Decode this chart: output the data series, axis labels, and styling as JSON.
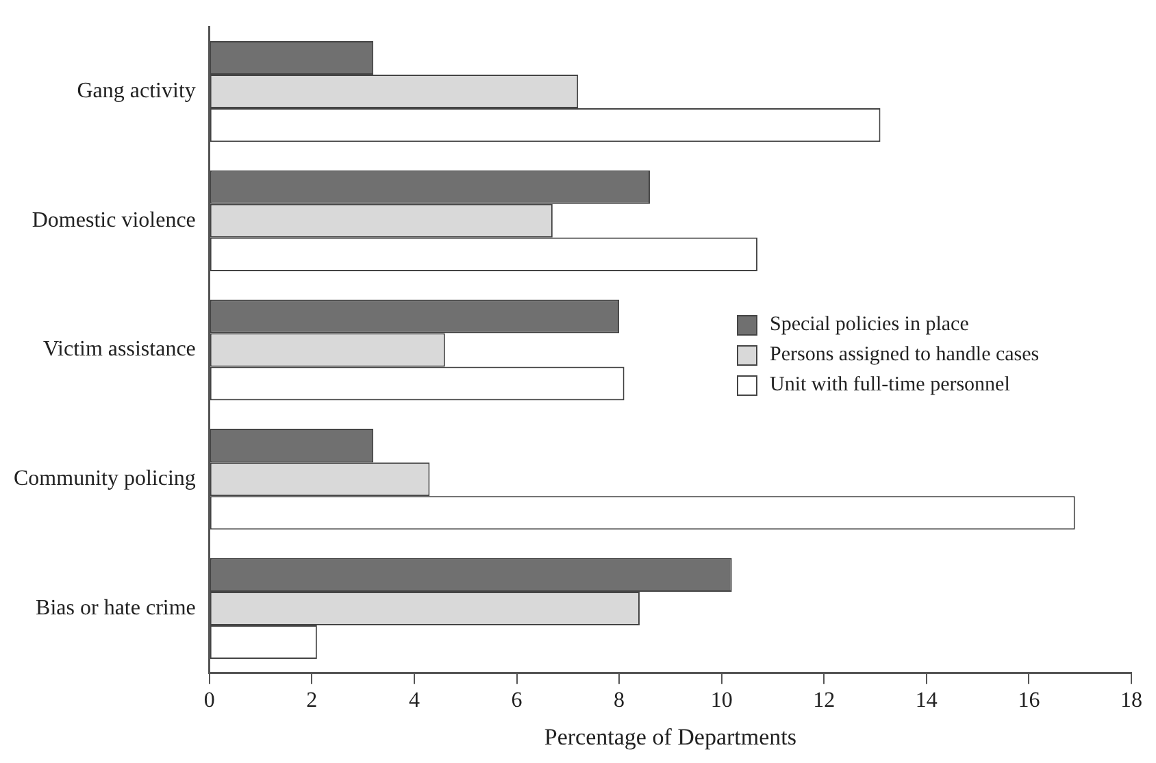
{
  "chart_data": {
    "type": "bar",
    "orientation": "horizontal",
    "xlabel": "Percentage of Departments",
    "categories": [
      "Gang activity",
      "Domestic violence",
      "Victim assistance",
      "Community policing",
      "Bias or hate crime"
    ],
    "series": [
      {
        "name": "Special policies in place",
        "color": "#707070",
        "values": [
          3.2,
          8.6,
          8.0,
          3.2,
          10.2
        ]
      },
      {
        "name": "Persons assigned to handle cases",
        "color": "#d9d9d9",
        "values": [
          7.2,
          6.7,
          4.6,
          4.3,
          8.4
        ]
      },
      {
        "name": "Unit with full-time personnel",
        "color": "#ffffff",
        "values": [
          13.1,
          10.7,
          8.1,
          16.9,
          2.1
        ]
      }
    ],
    "xlim": [
      0,
      18
    ],
    "xticks": [
      0,
      2,
      4,
      6,
      8,
      10,
      12,
      14,
      16,
      18
    ],
    "grid": false,
    "legend": "right"
  }
}
